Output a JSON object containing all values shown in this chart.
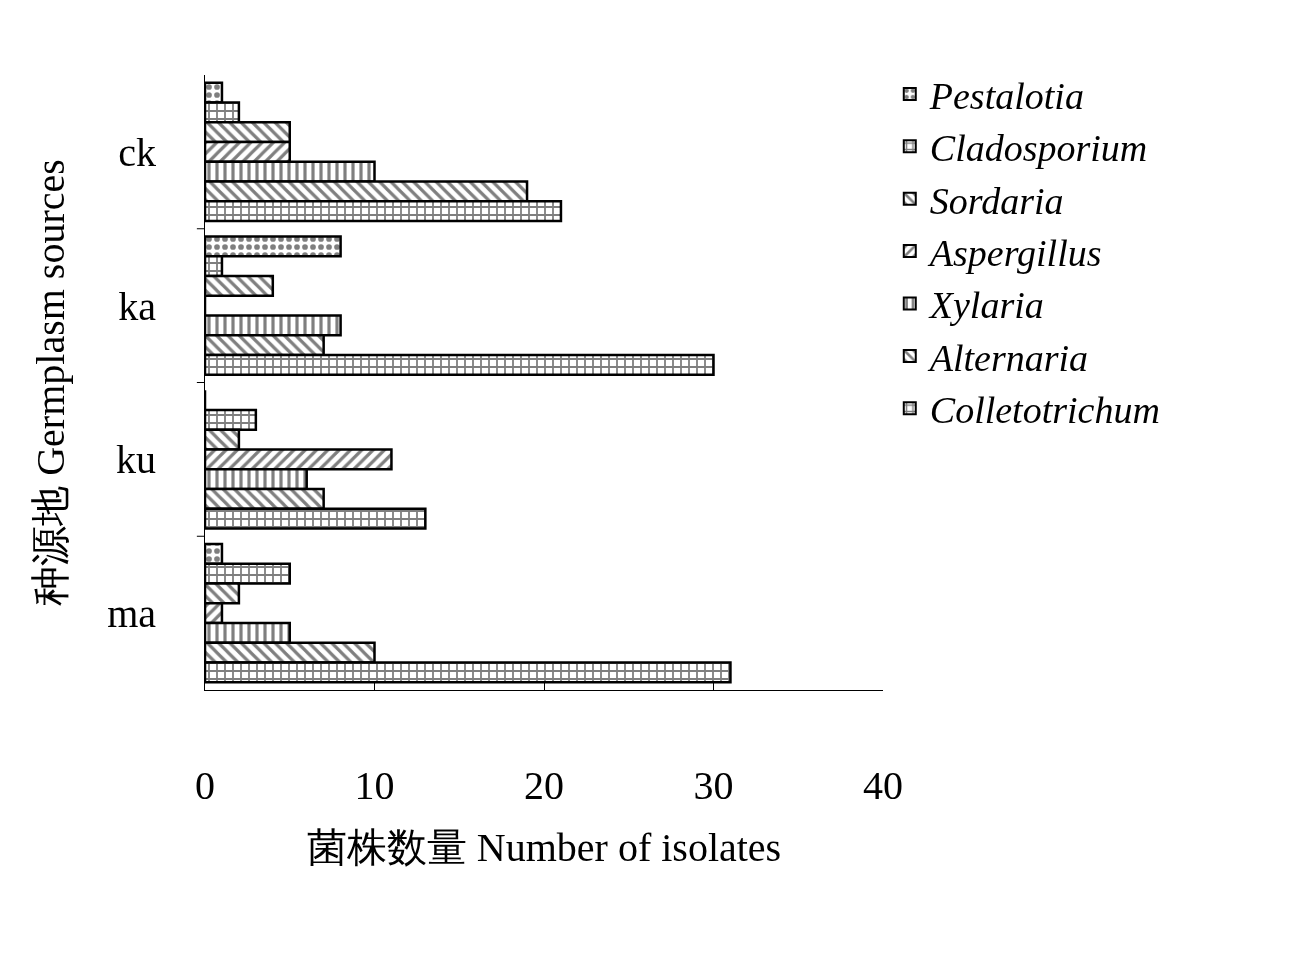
{
  "chart_data": {
    "type": "bar",
    "orientation": "horizontal",
    "xlabel": "菌株数量 Number of isolates",
    "ylabel": "种源地 Germplasm sources",
    "categories": [
      "ck",
      "ka",
      "ku",
      "ma"
    ],
    "series": [
      {
        "name": "Pestalotia",
        "color": "#000000",
        "values": [
          1,
          8,
          0,
          1
        ]
      },
      {
        "name": "Cladosporium",
        "color": "#000000",
        "values": [
          2,
          1,
          3,
          5
        ]
      },
      {
        "name": "Sordaria",
        "color": "#000000",
        "values": [
          5,
          4,
          2,
          2
        ]
      },
      {
        "name": "Aspergillus",
        "color": "#000000",
        "values": [
          5,
          0,
          11,
          1
        ]
      },
      {
        "name": "Xylaria",
        "color": "#000000",
        "values": [
          10,
          8,
          6,
          5
        ]
      },
      {
        "name": "Alternaria",
        "color": "#000000",
        "values": [
          19,
          7,
          7,
          10
        ]
      },
      {
        "name": "Colletotrichum",
        "color": "#000000",
        "values": [
          21,
          30,
          13,
          31
        ]
      }
    ],
    "xlim": [
      0,
      40
    ],
    "xticks": [
      0,
      10,
      20,
      30,
      40
    ],
    "grid": false,
    "legend": "top right"
  }
}
